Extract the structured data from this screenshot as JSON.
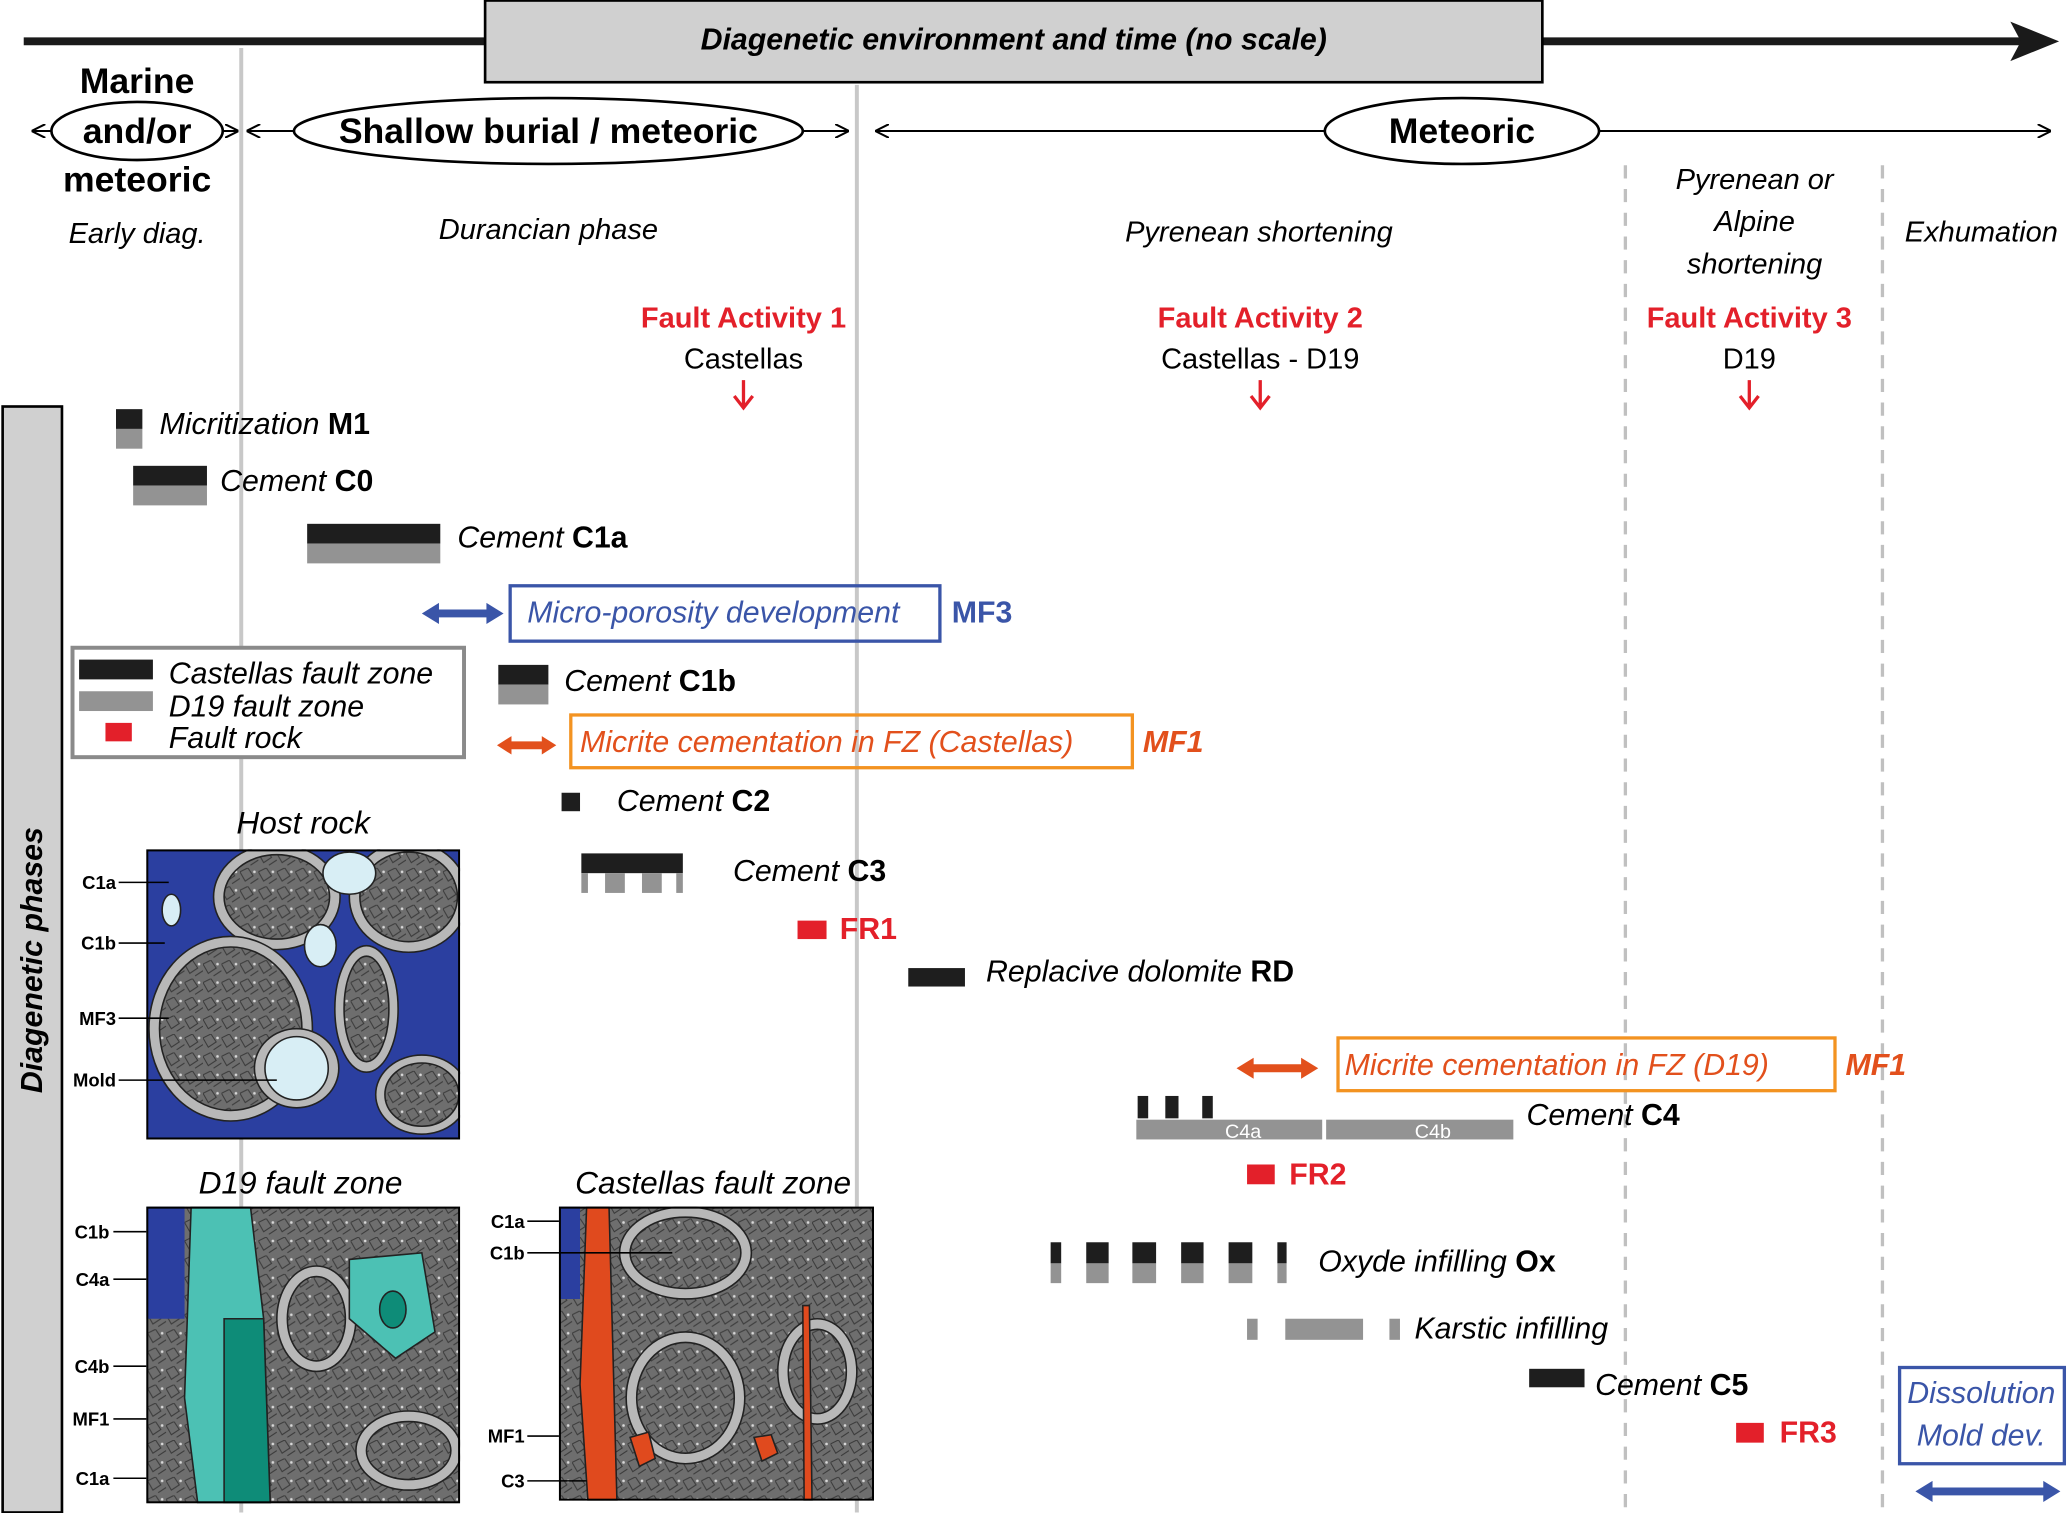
{
  "header": {
    "title": "Diagenetic environment and time (no scale)",
    "environments": {
      "marine": [
        "Marine",
        "and/or",
        "meteoric"
      ],
      "shallow": "Shallow burial / meteoric",
      "meteoric": "Meteoric"
    },
    "periods": {
      "early": "Early diag.",
      "durancian": "Durancian phase",
      "pyrenean": "Pyrenean shortening",
      "pyrenean_alpine": [
        "Pyrenean or",
        "Alpine",
        "shortening"
      ],
      "exhumation": "Exhumation"
    },
    "fault_activities": [
      {
        "label": "Fault Activity 1",
        "site": "Castellas"
      },
      {
        "label": "Fault Activity 2",
        "site": "Castellas - D19"
      },
      {
        "label": "Fault Activity 3",
        "site": "D19"
      }
    ]
  },
  "side_label": "Diagenetic phases",
  "legend": {
    "items": [
      {
        "label": "Castellas fault zone",
        "color": "#1e1e1e"
      },
      {
        "label": "D19 fault zone",
        "color": "#939393"
      },
      {
        "label": "Fault rock",
        "color": "#e3202a"
      }
    ]
  },
  "phases": {
    "m1": {
      "text": "Micritization ",
      "code": "M1"
    },
    "c0": {
      "text": "Cement ",
      "code": "C0"
    },
    "c1a": {
      "text": "Cement ",
      "code": "C1a"
    },
    "mf3": {
      "text": "Micro-porosity development",
      "code": "MF3"
    },
    "c1b": {
      "text": "Cement ",
      "code": "C1b"
    },
    "mf1_castellas": {
      "text": "Micrite cementation in FZ (Castellas)",
      "code": "MF1"
    },
    "c2": {
      "text": "Cement ",
      "code": "C2"
    },
    "c3": {
      "text": "Cement ",
      "code": "C3"
    },
    "fr1": {
      "code": "FR1"
    },
    "rd": {
      "text": "Replacive dolomite ",
      "code": "RD"
    },
    "mf1_d19": {
      "text": "Micrite cementation in FZ (D19)",
      "code": "MF1"
    },
    "c4": {
      "text": "Cement ",
      "code": "C4",
      "sub": [
        "C4a",
        "C4b"
      ]
    },
    "fr2": {
      "code": "FR2"
    },
    "ox": {
      "text": "Oxyde infilling ",
      "code": "Ox"
    },
    "karst": {
      "text": "Karstic infilling"
    },
    "c5": {
      "text": "Cement ",
      "code": "C5"
    },
    "fr3": {
      "code": "FR3"
    },
    "dissolution": [
      "Dissolution",
      "Mold dev."
    ]
  },
  "micrographs": {
    "host": {
      "title": "Host rock",
      "labels": [
        "C1a",
        "C1b",
        "MF3",
        "Mold"
      ]
    },
    "d19": {
      "title": "D19 fault zone",
      "labels": [
        "C1b",
        "C4a",
        "C4b",
        "MF1",
        "C1a"
      ]
    },
    "castellas": {
      "title": "Castellas fault zone",
      "labels": [
        "C1a",
        "C1b",
        "MF1",
        "C3"
      ]
    }
  },
  "colors": {
    "castellas": "#1e1e1e",
    "d19": "#939393",
    "fault_rock": "#e3202a",
    "fault_text": "#e3202a",
    "micrite": "#e2501c",
    "micrite_box": "#f39321",
    "microporosity": "#3a55a8",
    "header_box": "#d0d0d0"
  }
}
